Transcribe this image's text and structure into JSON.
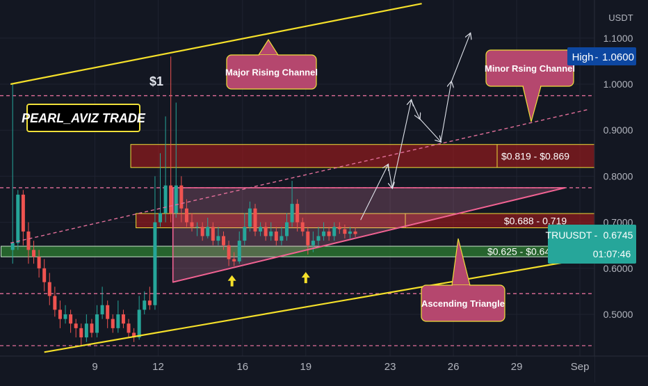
{
  "chart_data": {
    "type": "candlestick",
    "symbol": "TRUUSDT",
    "currency": "USDT",
    "y_ticks": [
      "1.1000",
      "1.0000",
      "0.9000",
      "0.8000",
      "0.7000",
      "0.6000",
      "0.5000"
    ],
    "y_tick_values": [
      1.1,
      1.0,
      0.9,
      0.8,
      0.7,
      0.6,
      0.5
    ],
    "ylim": [
      0.42,
      1.17
    ],
    "x_ticks": [
      "9",
      "12",
      "16",
      "19",
      "23",
      "26",
      "29",
      "Sep"
    ],
    "x_tick_days": [
      9,
      12,
      16,
      19,
      23,
      26,
      29,
      32
    ],
    "xlim": [
      5.0,
      32.4
    ],
    "high_label": "High",
    "high_value": "1.0600",
    "last_symbol": "TRUUSDT",
    "last_price": "0.6745",
    "countdown": "01:07:46",
    "peak_label": "$1",
    "logo": "PEARL_AVIZ TRADE",
    "zones": [
      {
        "label": "$0.819 - $0.869",
        "low": 0.819,
        "high": 0.869,
        "color": "#b71c1c"
      },
      {
        "label": "$0.688 - 0.719",
        "low": 0.688,
        "high": 0.719,
        "color": "#b71c1c"
      },
      {
        "label": "$0.625 - $0.648",
        "low": 0.625,
        "high": 0.648,
        "color": "#2e7d32"
      }
    ],
    "callouts": [
      {
        "label": "Major Rising Channel"
      },
      {
        "label": "Minor Rsing Channel"
      },
      {
        "label": "Ascending Triangle"
      }
    ],
    "dashed_levels": [
      0.975,
      0.775,
      0.545,
      0.432
    ],
    "channel_lines": {
      "upper_major": [
        [
          5.0,
          1.0
        ],
        [
          24.5,
          1.175
        ]
      ],
      "lower_major": [
        [
          6.6,
          0.418
        ],
        [
          32.4,
          0.622
        ]
      ],
      "minor_dashed": [
        [
          5.0,
          0.655
        ],
        [
          32.4,
          0.945
        ]
      ],
      "triangle_top": [
        [
          12.7,
          0.775
        ],
        [
          31.3,
          0.775
        ]
      ],
      "triangle_bottom": [
        [
          12.7,
          0.57
        ],
        [
          31.3,
          0.775
        ]
      ]
    },
    "projection_path": [
      [
        21.6,
        0.705
      ],
      [
        22.9,
        0.825
      ],
      [
        23.1,
        0.775
      ],
      [
        24.0,
        0.965
      ],
      [
        24.4,
        0.925
      ],
      [
        25.4,
        0.875
      ],
      [
        25.9,
        1.005
      ],
      [
        26.8,
        1.11
      ]
    ],
    "candles": [
      [
        5.1,
        0.64,
        0.655,
        0.61,
        1.0
      ],
      [
        5.35,
        0.655,
        0.76,
        0.64,
        0.77
      ],
      [
        5.6,
        0.76,
        0.68,
        0.65,
        0.77
      ],
      [
        5.85,
        0.68,
        0.64,
        0.61,
        0.7
      ],
      [
        6.1,
        0.64,
        0.625,
        0.61,
        0.66
      ],
      [
        6.35,
        0.625,
        0.6,
        0.58,
        0.64
      ],
      [
        6.6,
        0.6,
        0.57,
        0.55,
        0.62
      ],
      [
        6.85,
        0.57,
        0.54,
        0.52,
        0.59
      ],
      [
        7.1,
        0.54,
        0.51,
        0.495,
        0.56
      ],
      [
        7.35,
        0.51,
        0.49,
        0.47,
        0.53
      ],
      [
        7.6,
        0.49,
        0.5,
        0.48,
        0.52
      ],
      [
        7.85,
        0.5,
        0.48,
        0.46,
        0.51
      ],
      [
        8.1,
        0.48,
        0.47,
        0.45,
        0.49
      ],
      [
        8.35,
        0.47,
        0.45,
        0.43,
        0.48
      ],
      [
        8.6,
        0.45,
        0.48,
        0.44,
        0.5
      ],
      [
        8.85,
        0.48,
        0.46,
        0.45,
        0.49
      ],
      [
        9.1,
        0.46,
        0.5,
        0.45,
        0.52
      ],
      [
        9.35,
        0.5,
        0.52,
        0.49,
        0.56
      ],
      [
        9.6,
        0.52,
        0.49,
        0.47,
        0.53
      ],
      [
        9.85,
        0.49,
        0.47,
        0.46,
        0.5
      ],
      [
        10.1,
        0.47,
        0.5,
        0.46,
        0.53
      ],
      [
        10.35,
        0.5,
        0.48,
        0.47,
        0.51
      ],
      [
        10.6,
        0.48,
        0.46,
        0.45,
        0.49
      ],
      [
        10.85,
        0.46,
        0.45,
        0.44,
        0.47
      ],
      [
        11.1,
        0.45,
        0.51,
        0.445,
        0.54
      ],
      [
        11.35,
        0.51,
        0.53,
        0.5,
        0.55
      ],
      [
        11.6,
        0.53,
        0.52,
        0.51,
        0.56
      ],
      [
        11.85,
        0.52,
        0.7,
        0.51,
        0.8
      ],
      [
        12.1,
        0.7,
        0.72,
        0.69,
        0.85
      ],
      [
        12.35,
        0.72,
        0.78,
        0.7,
        0.93
      ],
      [
        12.6,
        0.78,
        0.72,
        0.7,
        1.06
      ],
      [
        12.85,
        0.72,
        0.78,
        0.71,
        0.96
      ],
      [
        13.1,
        0.78,
        0.73,
        0.7,
        0.8
      ],
      [
        13.35,
        0.73,
        0.7,
        0.69,
        0.75
      ],
      [
        13.6,
        0.7,
        0.69,
        0.68,
        0.72
      ],
      [
        13.85,
        0.69,
        0.69,
        0.67,
        0.7
      ],
      [
        14.1,
        0.69,
        0.67,
        0.66,
        0.7
      ],
      [
        14.35,
        0.67,
        0.69,
        0.665,
        0.71
      ],
      [
        14.6,
        0.69,
        0.66,
        0.65,
        0.7
      ],
      [
        14.85,
        0.66,
        0.67,
        0.65,
        0.69
      ],
      [
        15.1,
        0.67,
        0.65,
        0.64,
        0.68
      ],
      [
        15.35,
        0.65,
        0.62,
        0.605,
        0.66
      ],
      [
        15.6,
        0.62,
        0.615,
        0.605,
        0.635
      ],
      [
        15.85,
        0.615,
        0.66,
        0.61,
        0.68
      ],
      [
        16.1,
        0.66,
        0.69,
        0.65,
        0.72
      ],
      [
        16.35,
        0.69,
        0.73,
        0.68,
        0.745
      ],
      [
        16.6,
        0.73,
        0.68,
        0.67,
        0.74
      ],
      [
        16.85,
        0.68,
        0.69,
        0.67,
        0.7
      ],
      [
        17.1,
        0.69,
        0.67,
        0.66,
        0.7
      ],
      [
        17.35,
        0.67,
        0.68,
        0.66,
        0.7
      ],
      [
        17.6,
        0.68,
        0.66,
        0.65,
        0.69
      ],
      [
        17.85,
        0.66,
        0.67,
        0.65,
        0.69
      ],
      [
        18.1,
        0.67,
        0.7,
        0.66,
        0.72
      ],
      [
        18.35,
        0.7,
        0.74,
        0.69,
        0.79
      ],
      [
        18.6,
        0.74,
        0.7,
        0.68,
        0.75
      ],
      [
        18.85,
        0.7,
        0.68,
        0.67,
        0.71
      ],
      [
        19.1,
        0.68,
        0.65,
        0.63,
        0.69
      ],
      [
        19.35,
        0.65,
        0.66,
        0.635,
        0.68
      ],
      [
        19.6,
        0.66,
        0.67,
        0.65,
        0.69
      ],
      [
        19.85,
        0.67,
        0.68,
        0.66,
        0.7
      ],
      [
        20.1,
        0.68,
        0.67,
        0.66,
        0.69
      ],
      [
        20.35,
        0.67,
        0.69,
        0.66,
        0.7
      ],
      [
        20.6,
        0.69,
        0.685,
        0.675,
        0.7
      ],
      [
        20.85,
        0.685,
        0.675,
        0.665,
        0.695
      ],
      [
        21.1,
        0.675,
        0.68,
        0.665,
        0.69
      ],
      [
        21.35,
        0.68,
        0.6745,
        0.668,
        0.688
      ]
    ]
  }
}
